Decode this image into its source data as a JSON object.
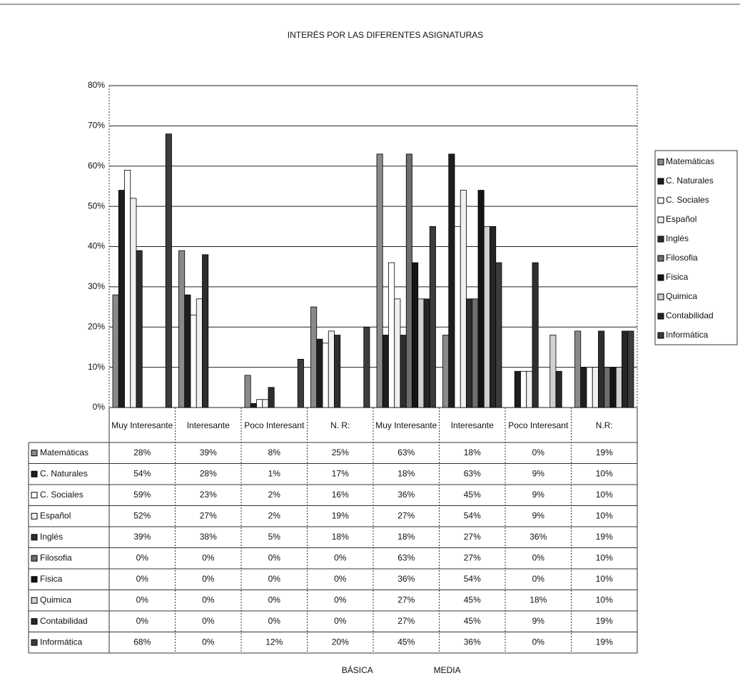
{
  "chart_data": {
    "type": "bar",
    "title": "INTERÉS POR LAS DIFERENTES ASIGNATURAS",
    "categories": [
      "Muy Interesante",
      "Interesante",
      "Poco Interesant",
      "N. R:",
      "Muy Interesante",
      "Interesante",
      "Poco Interesant",
      "N.R:"
    ],
    "group_labels": [
      "BÁSICA",
      "MEDIA"
    ],
    "ylim": [
      0,
      80
    ],
    "yticks": [
      {
        "value": 0,
        "label": "0%"
      },
      {
        "value": 10,
        "label": "10%"
      },
      {
        "value": 20,
        "label": "20%"
      },
      {
        "value": 30,
        "label": "30%"
      },
      {
        "value": 40,
        "label": "40%"
      },
      {
        "value": 50,
        "label": "50%"
      },
      {
        "value": 60,
        "label": "60%"
      },
      {
        "value": 70,
        "label": "70%"
      },
      {
        "value": 80,
        "label": "80%"
      }
    ],
    "grid": true,
    "legend": "right",
    "series": [
      {
        "name": "Matemáticas",
        "color": "#8a8a8a",
        "values": [
          28,
          39,
          8,
          25,
          63,
          18,
          0,
          19
        ],
        "value_labels": [
          "28%",
          "39%",
          "8%",
          "25%",
          "63%",
          "18%",
          "0%",
          "19%"
        ]
      },
      {
        "name": "C. Naturales",
        "color": "#1e1e1e",
        "values": [
          54,
          28,
          1,
          17,
          18,
          63,
          9,
          10
        ],
        "value_labels": [
          "54%",
          "28%",
          "1%",
          "17%",
          "18%",
          "63%",
          "9%",
          "10%"
        ]
      },
      {
        "name": "C. Sociales",
        "color": "#ffffff",
        "values": [
          59,
          23,
          2,
          16,
          36,
          45,
          9,
          10
        ],
        "value_labels": [
          "59%",
          "23%",
          "2%",
          "16%",
          "36%",
          "45%",
          "9%",
          "10%"
        ]
      },
      {
        "name": "Español",
        "color": "#f0f0f0",
        "values": [
          52,
          27,
          2,
          19,
          27,
          54,
          9,
          10
        ],
        "value_labels": [
          "52%",
          "27%",
          "2%",
          "19%",
          "27%",
          "54%",
          "9%",
          "10%"
        ]
      },
      {
        "name": "Inglés",
        "color": "#2e2e2e",
        "values": [
          39,
          38,
          5,
          18,
          18,
          27,
          36,
          19
        ],
        "value_labels": [
          "39%",
          "38%",
          "5%",
          "18%",
          "18%",
          "27%",
          "36%",
          "19%"
        ]
      },
      {
        "name": "Filosofia",
        "color": "#6e6e6e",
        "values": [
          0,
          0,
          0,
          0,
          63,
          27,
          0,
          10
        ],
        "value_labels": [
          "0%",
          "0%",
          "0%",
          "0%",
          "63%",
          "27%",
          "0%",
          "10%"
        ]
      },
      {
        "name": "Fisica",
        "color": "#141414",
        "values": [
          0,
          0,
          0,
          0,
          36,
          54,
          0,
          10
        ],
        "value_labels": [
          "0%",
          "0%",
          "0%",
          "0%",
          "36%",
          "54%",
          "0%",
          "10%"
        ]
      },
      {
        "name": "Quimica",
        "color": "#d0d0d0",
        "values": [
          0,
          0,
          0,
          0,
          27,
          45,
          18,
          10
        ],
        "value_labels": [
          "0%",
          "0%",
          "0%",
          "0%",
          "27%",
          "45%",
          "18%",
          "10%"
        ]
      },
      {
        "name": "Contabilidad",
        "color": "#262626",
        "values": [
          0,
          0,
          0,
          0,
          27,
          45,
          9,
          19
        ],
        "value_labels": [
          "0%",
          "0%",
          "0%",
          "0%",
          "27%",
          "45%",
          "9%",
          "19%"
        ]
      },
      {
        "name": "Informática",
        "color": "#3c3c3c",
        "values": [
          68,
          0,
          12,
          20,
          45,
          36,
          0,
          19
        ],
        "value_labels": [
          "68%",
          "0%",
          "12%",
          "20%",
          "45%",
          "36%",
          "0%",
          "19%"
        ]
      }
    ]
  }
}
